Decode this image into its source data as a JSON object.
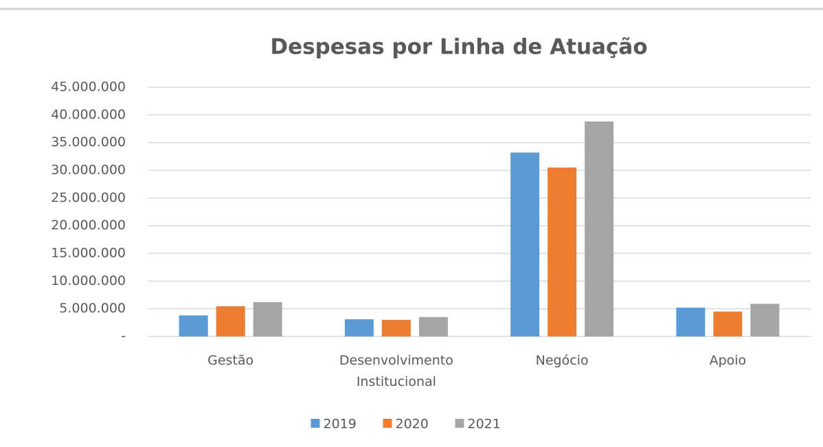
{
  "chart_data": {
    "type": "bar",
    "title": "Despesas por Linha de Atuação",
    "categories": [
      "Gestão",
      "Desenvolvimento Institucional",
      "Negócio",
      "Apoio"
    ],
    "series": [
      {
        "name": "2019",
        "color": "#5b9bd5",
        "values": [
          3800000,
          3100000,
          33200000,
          5200000
        ]
      },
      {
        "name": "2020",
        "color": "#ed7d31",
        "values": [
          5450000,
          3000000,
          30500000,
          4500000
        ]
      },
      {
        "name": "2021",
        "color": "#a5a5a5",
        "values": [
          6200000,
          3500000,
          38800000,
          5900000
        ]
      }
    ],
    "ylim": [
      0,
      45000000
    ],
    "yticks": [
      {
        "value": 0,
        "label": "-"
      },
      {
        "value": 5000000,
        "label": "5.000.000"
      },
      {
        "value": 10000000,
        "label": "10.000.000"
      },
      {
        "value": 15000000,
        "label": "15.000.000"
      },
      {
        "value": 20000000,
        "label": "20.000.000"
      },
      {
        "value": 25000000,
        "label": "25.000.000"
      },
      {
        "value": 30000000,
        "label": "30.000.000"
      },
      {
        "value": 35000000,
        "label": "35.000.000"
      },
      {
        "value": 40000000,
        "label": "40.000.000"
      },
      {
        "value": 45000000,
        "label": "45.000.000"
      }
    ],
    "grid": true,
    "legend": "bottom"
  }
}
